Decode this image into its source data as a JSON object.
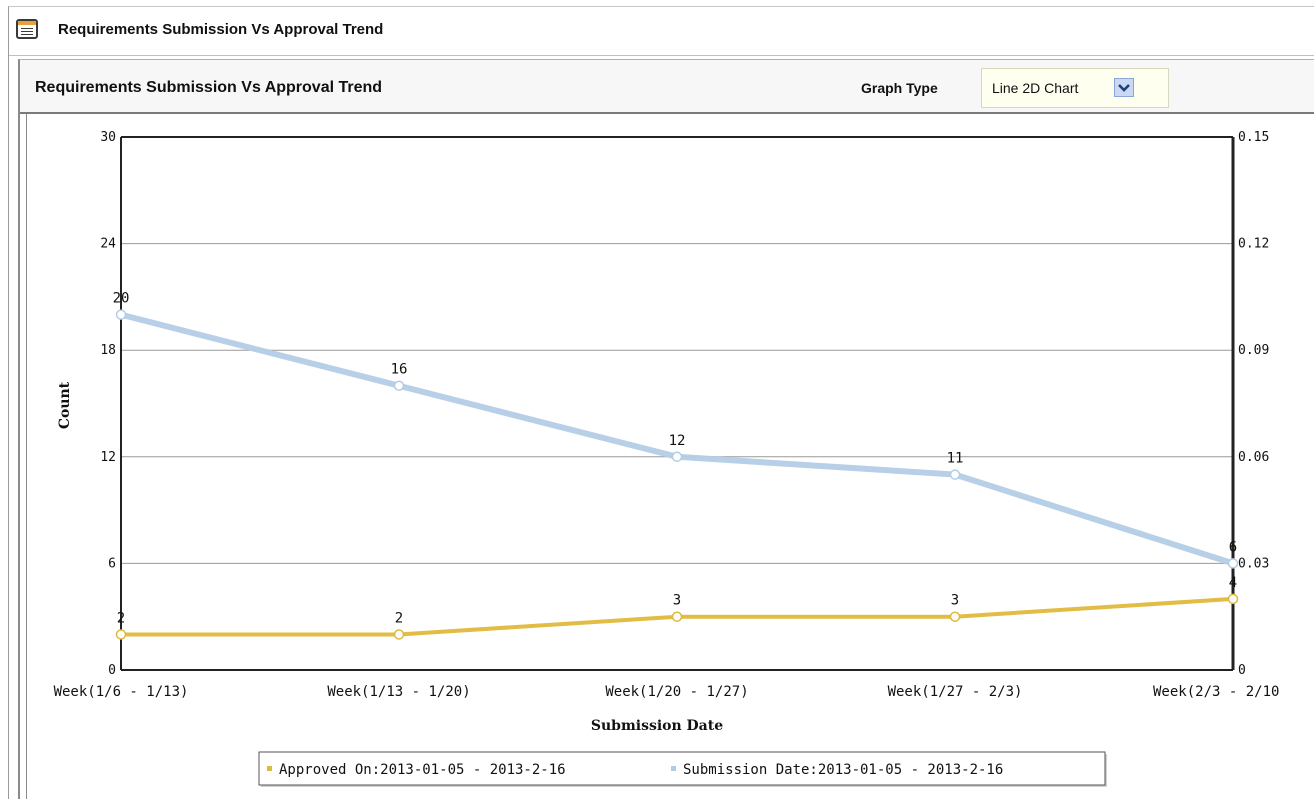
{
  "panel": {
    "title": "Requirements Submission Vs Approval Trend",
    "icon": "document-list-icon"
  },
  "chart_header": {
    "title": "Requirements Submission Vs Approval Trend",
    "graph_type_label": "Graph Type",
    "graph_type_value": "Line 2D Chart"
  },
  "colors": {
    "submission": "#b3cce6",
    "approved": "#e0b83a",
    "grid": "#9a9a9a",
    "axis": "#222222"
  },
  "chart_data": {
    "type": "line",
    "title": "",
    "xlabel": "Submission Date",
    "ylabel": "Count",
    "categories": [
      "Week(1/6 - 1/13)",
      "Week(1/13 - 1/20)",
      "Week(1/20 - 1/27)",
      "Week(1/27 - 2/3)",
      "Week(2/3 - 2/10"
    ],
    "ylim": [
      0,
      30
    ],
    "yticks": [
      "0",
      "6",
      "12",
      "18",
      "24",
      "30"
    ],
    "y2lim": [
      0,
      0.15
    ],
    "y2ticks": [
      "0",
      "0.03",
      "0.06",
      "0.09",
      "0.12",
      "0.15"
    ],
    "grid": true,
    "legend_position": "bottom",
    "series": [
      {
        "name": "Approved On:2013-01-05 - 2013-2-16",
        "values": [
          2,
          2,
          3,
          3,
          4
        ],
        "color": "#e0b83a"
      },
      {
        "name": "Submission Date:2013-01-05 - 2013-2-16",
        "values": [
          20,
          16,
          12,
          11,
          6
        ],
        "color": "#b3cce6"
      }
    ]
  }
}
